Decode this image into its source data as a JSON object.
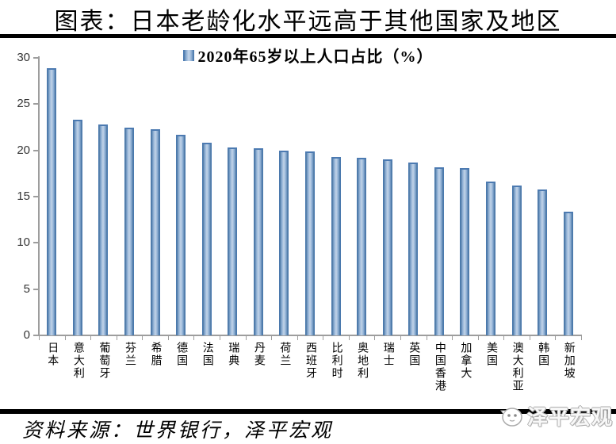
{
  "title": "图表：日本老龄化水平远高于其他国家及地区",
  "source": "资料来源：世界银行，泽平宏观",
  "watermark": "泽平宏观",
  "colors": {
    "bar_edge": "#4f81bd",
    "bar_center": "#c3d4e8",
    "axis": "#9d9d9d",
    "rule": "#000000",
    "tick_label": "#353535"
  },
  "chart_data": {
    "type": "bar",
    "title": "2020年65岁以上人口占比（%）",
    "categories": [
      "日本",
      "意大利",
      "葡萄牙",
      "芬兰",
      "希腊",
      "德国",
      "法国",
      "瑞典",
      "丹麦",
      "荷兰",
      "西班牙",
      "比利时",
      "奥地利",
      "瑞士",
      "英国",
      "中国香港",
      "加拿大",
      "美国",
      "澳大利亚",
      "韩国",
      "新加坡"
    ],
    "values": [
      28.9,
      23.3,
      22.8,
      22.5,
      22.3,
      21.7,
      20.8,
      20.3,
      20.2,
      20.0,
      19.9,
      19.3,
      19.2,
      19.0,
      18.7,
      18.2,
      18.1,
      16.6,
      16.2,
      15.8,
      13.4
    ],
    "xlabel": "",
    "ylabel": "",
    "ylim": [
      0,
      30
    ],
    "yticks": [
      0,
      5,
      10,
      15,
      20,
      25,
      30
    ],
    "grid": false,
    "legend_position": "top-center"
  }
}
